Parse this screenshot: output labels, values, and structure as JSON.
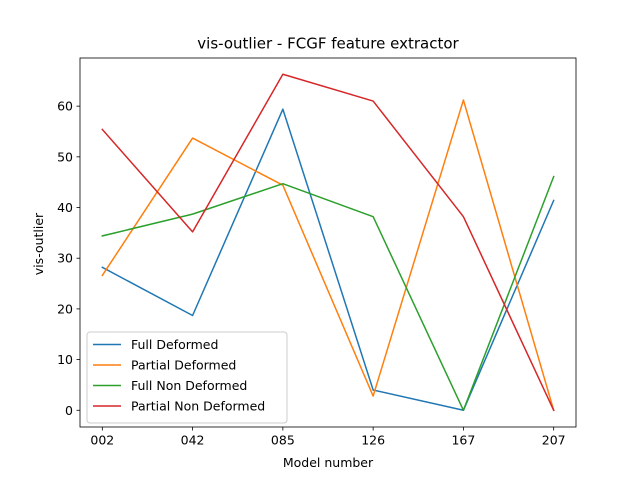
{
  "chart_data": {
    "type": "line",
    "title": "vis-outlier - FCGF feature extractor",
    "xlabel": "Model number",
    "ylabel": "vis-outlier",
    "categories": [
      "002",
      "042",
      "085",
      "126",
      "167",
      "207"
    ],
    "ylim": [
      -3.3,
      69.5
    ],
    "yticks": [
      0,
      10,
      20,
      30,
      40,
      50,
      60
    ],
    "grid": false,
    "legend_position": "lower-left",
    "series": [
      {
        "name": "Full Deformed",
        "color": "#1f77b4",
        "values": [
          28.2,
          18.7,
          59.4,
          4.0,
          0.0,
          41.4
        ]
      },
      {
        "name": "Partial Deformed",
        "color": "#ff7f0e",
        "values": [
          26.6,
          53.7,
          44.4,
          2.8,
          61.2,
          0.0
        ]
      },
      {
        "name": "Full Non Deformed",
        "color": "#2ca02c",
        "values": [
          34.4,
          38.7,
          44.7,
          38.2,
          0.0,
          46.1
        ]
      },
      {
        "name": "Partial Non Deformed",
        "color": "#d62728",
        "values": [
          55.4,
          35.2,
          66.3,
          61.0,
          38.2,
          0.0
        ]
      }
    ]
  }
}
